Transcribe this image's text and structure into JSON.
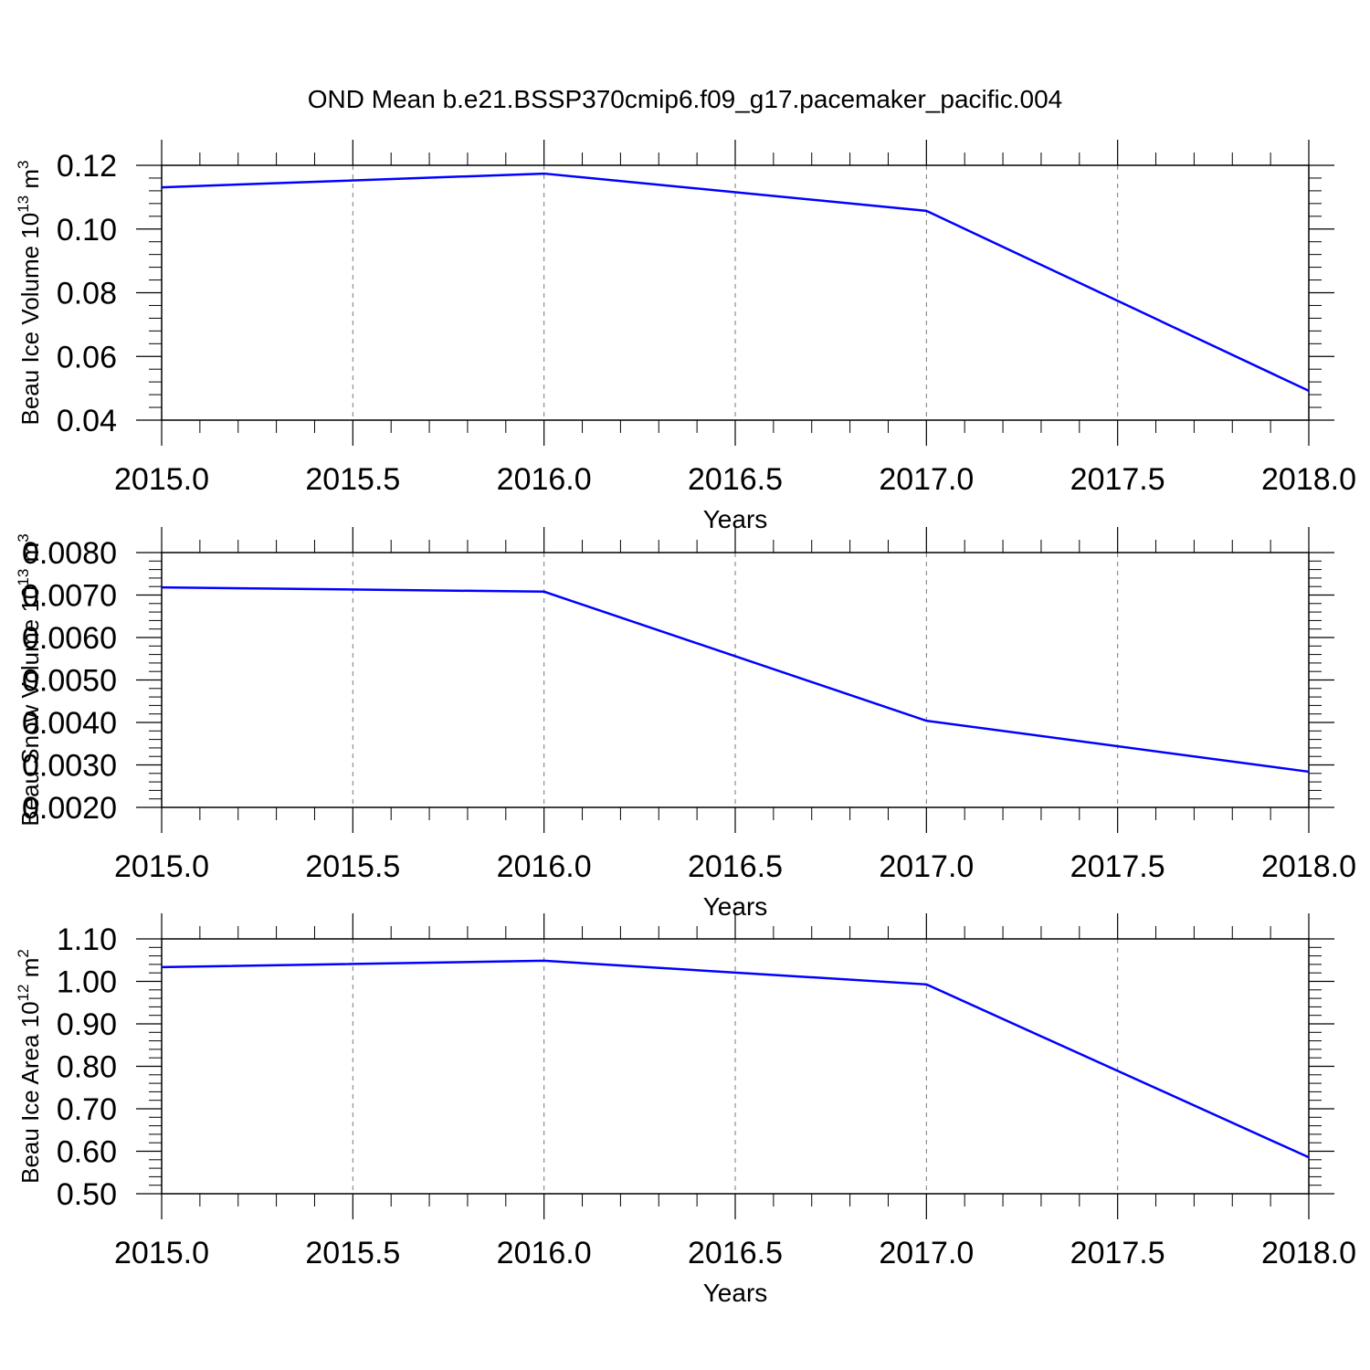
{
  "title": "OND Mean b.e21.BSSP370cmip6.f09_g17.pacemaker_pacific.004",
  "chart_data": [
    {
      "type": "line",
      "ylabel": [
        "Beau Ice Volume 10",
        "13",
        " m",
        "3"
      ],
      "xlabel": "Years",
      "x": [
        2015,
        2016,
        2017,
        2018
      ],
      "series": [
        {
          "color": "#0000ff",
          "values": [
            0.1131,
            0.1174,
            0.1057,
            0.0492
          ]
        }
      ],
      "xlim": [
        2015,
        2018
      ],
      "ylim": [
        0.04,
        0.12
      ],
      "xticks": [
        {
          "value": 2015,
          "label": "2015.0"
        },
        2015.5,
        {
          "value": 2016,
          "label": "2016.0"
        },
        2016.5,
        {
          "value": 2017,
          "label": "2017.0"
        },
        2017.5,
        {
          "value": 2018,
          "label": "2018.0"
        }
      ],
      "yticks": [
        0.04,
        0.06,
        0.08,
        {
          "value": 0.1,
          "label": "0.10"
        },
        0.12
      ],
      "grid": true
    },
    {
      "type": "line",
      "ylabel": [
        "Beau Snow Volume 10",
        "13",
        " m",
        "3"
      ],
      "xlabel": "Years",
      "x": [
        2015,
        2016,
        2017,
        2018
      ],
      "series": [
        {
          "color": "#0000ff",
          "values": [
            0.00718,
            0.00708,
            0.00404,
            0.00284
          ]
        }
      ],
      "xlim": [
        2015,
        2018
      ],
      "ylim": [
        0.002,
        0.008
      ],
      "xticks": [
        {
          "value": 2015,
          "label": "2015.0"
        },
        2015.5,
        {
          "value": 2016,
          "label": "2016.0"
        },
        2016.5,
        {
          "value": 2017,
          "label": "2017.0"
        },
        2017.5,
        {
          "value": 2018,
          "label": "2018.0"
        }
      ],
      "yticks": [
        {
          "value": 0.002,
          "label": "0.0020"
        },
        {
          "value": 0.003,
          "label": "0.0030"
        },
        {
          "value": 0.004,
          "label": "0.0040"
        },
        {
          "value": 0.005,
          "label": "0.0050"
        },
        {
          "value": 0.006,
          "label": "0.0060"
        },
        {
          "value": 0.007,
          "label": "0.0070"
        },
        {
          "value": 0.008,
          "label": "0.0080"
        }
      ],
      "grid": true
    },
    {
      "type": "line",
      "ylabel": [
        "Beau Ice Area 10",
        "12",
        " m",
        "2"
      ],
      "xlabel": "Years",
      "x": [
        2015,
        2016,
        2017,
        2018
      ],
      "series": [
        {
          "color": "#0000ff",
          "values": [
            1.0336,
            1.0486,
            0.9929,
            0.5857
          ]
        }
      ],
      "xlim": [
        2015,
        2018
      ],
      "ylim": [
        0.5,
        1.1
      ],
      "xticks": [
        {
          "value": 2015,
          "label": "2015.0"
        },
        2015.5,
        {
          "value": 2016,
          "label": "2016.0"
        },
        2016.5,
        {
          "value": 2017,
          "label": "2017.0"
        },
        2017.5,
        {
          "value": 2018,
          "label": "2018.0"
        }
      ],
      "yticks": [
        {
          "value": 0.5,
          "label": "0.50"
        },
        {
          "value": 0.6,
          "label": "0.60"
        },
        {
          "value": 0.7,
          "label": "0.70"
        },
        {
          "value": 0.8,
          "label": "0.80"
        },
        {
          "value": 0.9,
          "label": "0.90"
        },
        {
          "value": 1.0,
          "label": "1.00"
        },
        {
          "value": 1.1,
          "label": "1.10"
        }
      ],
      "grid": true
    }
  ]
}
